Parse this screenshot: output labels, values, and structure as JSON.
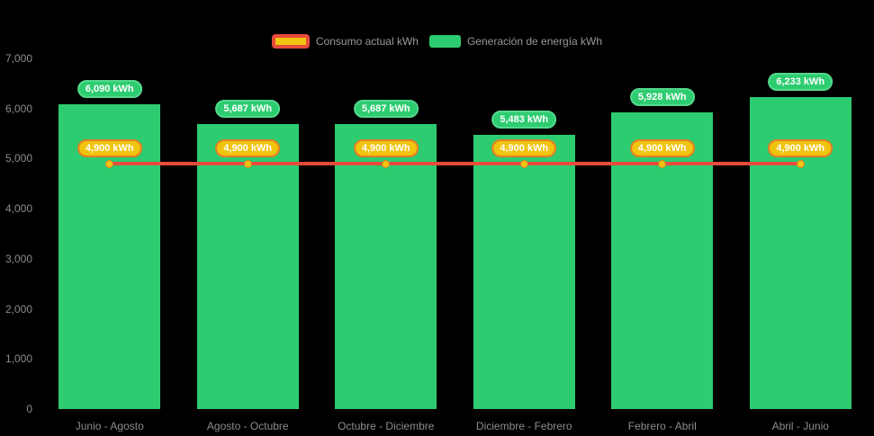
{
  "page": {
    "background": "#000000"
  },
  "legend": {
    "items": [
      {
        "id": "consumo",
        "label": "Consumo actual kWh",
        "swatch_fill": "#f1c40f",
        "swatch_border": "#e74c3c"
      },
      {
        "id": "generacion",
        "label": "Generación de energía kWh",
        "swatch_fill": "#2ecc71"
      }
    ]
  },
  "chart_data": {
    "type": "bar",
    "title": "",
    "xlabel": "",
    "ylabel": "",
    "categories": [
      "Junio - Agosto",
      "Agosto - Octubre",
      "Octubre - Diciembre",
      "Diciembre - Febrero",
      "Febrero - Abril",
      "Abril - Junio"
    ],
    "series": [
      {
        "name": "Generación de energía kWh",
        "type": "bar",
        "color": "#2ecc71",
        "label_border": "#54d98c",
        "values": [
          6090,
          5687,
          5687,
          5483,
          5928,
          6233
        ],
        "label_suffix": " kWh"
      },
      {
        "name": "Consumo actual kWh",
        "type": "line",
        "color": "#e74c3c",
        "point_color": "#f1c40f",
        "point_border": "#e67e22",
        "label_fill": "#f1c40f",
        "label_border": "#e67e22",
        "values": [
          4900,
          4900,
          4900,
          4900,
          4900,
          4900
        ],
        "label_suffix": " kWh"
      }
    ],
    "ylim": [
      0,
      7000
    ],
    "ytick_step": 1000,
    "yticks": [
      "0",
      "1,000",
      "2,000",
      "3,000",
      "4,000",
      "5,000",
      "6,000",
      "7,000"
    ],
    "grid": false,
    "legend_position": "top",
    "axis_label_color": "#8c8c8c"
  }
}
